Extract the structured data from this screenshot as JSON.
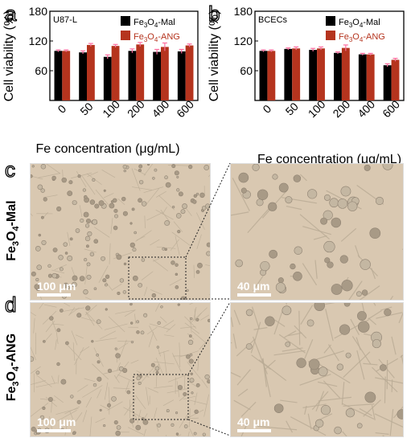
{
  "panel_a": {
    "letter": "a",
    "title": "U87-L",
    "ylabel": "Cell viability (%)",
    "xlabel": "Fe concentration (μg/mL)"
  },
  "panel_b": {
    "letter": "b",
    "title": "BCECs",
    "ylabel": "Cell viability (%)",
    "xlabel": "Fe concentration (μg/mL)"
  },
  "panel_c": {
    "letter": "c",
    "row_label": "Fe3O4-Mal",
    "scale_left": "100 μm",
    "scale_right": "40 μm"
  },
  "panel_d": {
    "letter": "d",
    "row_label": "Fe3O4-ANG",
    "scale_left": "100 μm",
    "scale_right": "40 μm"
  },
  "colors": {
    "mal": "#000000",
    "ang": "#b5341e",
    "error": "#ff6ea0",
    "micrograph": "#d9c8b1"
  },
  "chart_data": [
    {
      "type": "bar",
      "title": "U87-L",
      "xlabel": "Fe concentration (μg/mL)",
      "ylabel": "Cell viability (%)",
      "categories": [
        "0",
        "50",
        "100",
        "200",
        "400",
        "600"
      ],
      "ylim": [
        0,
        180
      ],
      "yticks": [
        0,
        60,
        120,
        180
      ],
      "legend": "top-right",
      "series": [
        {
          "name": "Fe3O4-Mal",
          "values": [
            100,
            97,
            88,
            100,
            98,
            99
          ],
          "errors": [
            2,
            3,
            4,
            4,
            5,
            4
          ],
          "color": "#000000"
        },
        {
          "name": "Fe3O4-ANG",
          "values": [
            100,
            112,
            110,
            113,
            108,
            111
          ],
          "errors": [
            2,
            3,
            3,
            4,
            8,
            3
          ],
          "color": "#b5341e"
        }
      ]
    },
    {
      "type": "bar",
      "title": "BCECs",
      "xlabel": "Fe concentration (μg/mL)",
      "ylabel": "Cell viability (%)",
      "categories": [
        "0",
        "50",
        "100",
        "200",
        "400",
        "600"
      ],
      "ylim": [
        0,
        180
      ],
      "yticks": [
        0,
        60,
        120,
        180
      ],
      "legend": "top-right",
      "series": [
        {
          "name": "Fe3O4-Mal",
          "values": [
            100,
            104,
            102,
            96,
            93,
            71
          ],
          "errors": [
            2,
            2,
            3,
            2,
            2,
            3
          ],
          "color": "#000000"
        },
        {
          "name": "Fe3O4-ANG",
          "values": [
            100,
            105,
            105,
            106,
            93,
            82
          ],
          "errors": [
            2,
            3,
            3,
            6,
            2,
            3
          ],
          "color": "#b5341e"
        }
      ]
    }
  ]
}
